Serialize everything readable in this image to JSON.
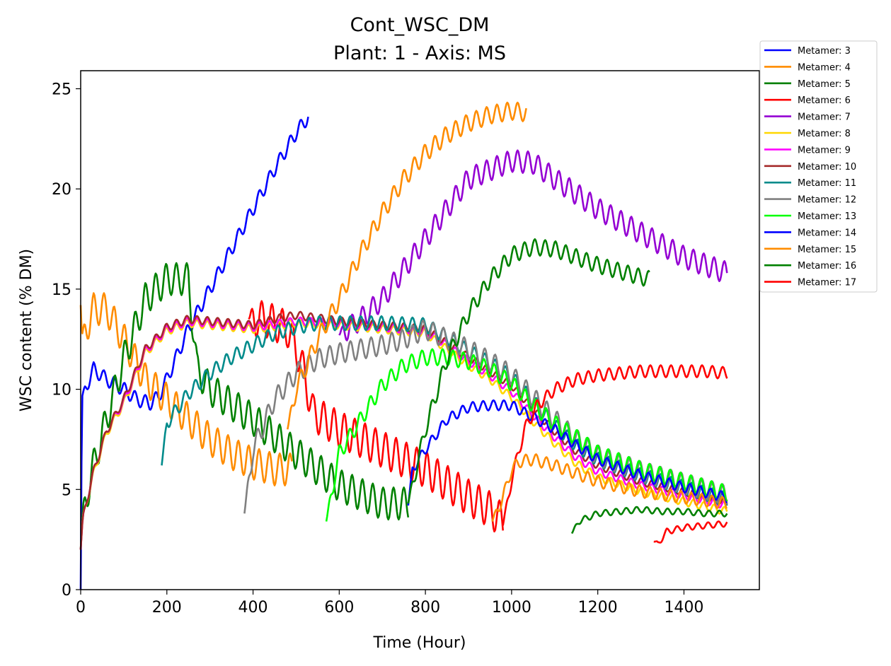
{
  "chart_data": {
    "type": "line",
    "title": "Cont_WSC_DM",
    "subtitle": "Plant: 1 - Axis: MS",
    "xlabel": "Time (Hour)",
    "ylabel": "WSC content (% DM)",
    "xlim": [
      0,
      1575
    ],
    "ylim": [
      0,
      25.9
    ],
    "xticks": [
      "0",
      "200",
      "400",
      "600",
      "800",
      "1000",
      "1200",
      "1400"
    ],
    "yticks": [
      "0",
      "5",
      "10",
      "15",
      "20",
      "25"
    ],
    "grid": false,
    "legend_position": "outside top-right",
    "series": [
      {
        "name": "Metamer: 3",
        "color": "#0000ff",
        "amp": 0.35,
        "x": [
          0,
          3,
          10,
          30,
          60,
          100,
          130,
          160,
          180,
          200,
          250,
          300,
          350,
          400,
          450,
          500,
          528
        ],
        "y": [
          0,
          9.5,
          10.0,
          11.0,
          10.5,
          10.0,
          9.5,
          9.3,
          9.6,
          10.5,
          13.0,
          15.0,
          17.0,
          19.0,
          21.0,
          22.8,
          23.6
        ]
      },
      {
        "name": "Metamer: 4",
        "color": "#ff8c00",
        "amp": 0.8,
        "x": [
          0,
          3,
          30,
          60,
          100,
          150,
          200,
          250,
          300,
          350,
          400,
          450,
          490
        ],
        "y": [
          14.2,
          12.5,
          14.0,
          14.0,
          12.5,
          10.5,
          9.5,
          8.5,
          7.5,
          6.8,
          6.3,
          6.0,
          6.0
        ]
      },
      {
        "name": "Metamer: 5",
        "color": "#008000",
        "amp": 0.8,
        "x": [
          0,
          5,
          30,
          60,
          100,
          150,
          200,
          250,
          270,
          300,
          400,
          500,
          600,
          700,
          760
        ],
        "y": [
          2.0,
          3.8,
          6.2,
          8.5,
          11.5,
          14.5,
          15.5,
          15.5,
          11.0,
          10.0,
          8.5,
          6.8,
          5.2,
          4.3,
          4.3
        ]
      },
      {
        "name": "Metamer: 6",
        "color": "#ff0000",
        "amp": 0.9,
        "x": [
          390,
          430,
          480,
          510,
          540,
          600,
          700,
          800,
          900,
          950,
          980
        ],
        "y": [
          13.5,
          13.5,
          13.0,
          11.5,
          8.8,
          8.0,
          7.0,
          6.0,
          4.6,
          4.0,
          3.4
        ]
      },
      {
        "name": "Metamer: 7",
        "color": "#9400d3",
        "amp": 0.55,
        "x": [
          600,
          650,
          700,
          750,
          800,
          850,
          900,
          1000,
          1050,
          1100,
          1200,
          1300,
          1400,
          1500
        ],
        "y": [
          12.7,
          13.5,
          14.5,
          16.0,
          17.5,
          19.0,
          20.5,
          21.4,
          21.3,
          20.5,
          19.0,
          17.8,
          16.6,
          15.8
        ]
      },
      {
        "name": "Metamer: 8",
        "color": "#ffd700",
        "amp": 0.2,
        "x": [
          0,
          5,
          30,
          60,
          100,
          150,
          200,
          250,
          300,
          400,
          500,
          600,
          700,
          800,
          850,
          900,
          950,
          1000,
          1050,
          1100,
          1150,
          1200,
          1300,
          1400,
          1500
        ],
        "y": [
          2.0,
          3.6,
          5.8,
          7.8,
          9.3,
          11.8,
          12.9,
          13.3,
          13.2,
          13.0,
          13.3,
          13.2,
          13.0,
          12.8,
          12.0,
          11.2,
          10.5,
          9.6,
          8.4,
          7.3,
          6.3,
          5.6,
          4.9,
          4.4,
          3.9
        ]
      },
      {
        "name": "Metamer: 9",
        "color": "#ff00ff",
        "amp": 0.2,
        "x": [
          0,
          5,
          30,
          60,
          100,
          150,
          200,
          250,
          300,
          400,
          500,
          600,
          700,
          800,
          850,
          900,
          950,
          1000,
          1050,
          1100,
          1150,
          1200,
          1300,
          1400,
          1500
        ],
        "y": [
          2.0,
          3.6,
          5.9,
          7.9,
          9.4,
          11.9,
          13.0,
          13.4,
          13.3,
          13.1,
          13.4,
          13.3,
          13.1,
          12.9,
          12.2,
          11.4,
          10.7,
          9.9,
          8.7,
          7.6,
          6.6,
          5.9,
          5.2,
          4.7,
          4.2
        ]
      },
      {
        "name": "Metamer: 10",
        "color": "#a52a2a",
        "amp": 0.2,
        "x": [
          0,
          5,
          30,
          60,
          100,
          150,
          200,
          250,
          300,
          400,
          450,
          500,
          600,
          700,
          800,
          850,
          900,
          950,
          1000,
          1050,
          1100,
          1150,
          1200,
          1300,
          1400,
          1500
        ],
        "y": [
          2.0,
          3.6,
          5.9,
          7.9,
          9.5,
          12.0,
          13.1,
          13.5,
          13.4,
          13.2,
          13.5,
          13.7,
          13.4,
          13.2,
          13.0,
          12.3,
          11.6,
          10.9,
          10.2,
          9.0,
          7.9,
          6.9,
          6.2,
          5.4,
          4.9,
          4.4
        ]
      },
      {
        "name": "Metamer: 11",
        "color": "#008b8b",
        "amp": 0.35,
        "x": [
          188,
          200,
          250,
          300,
          350,
          400,
          450,
          500,
          550,
          600,
          700,
          800,
          850,
          900,
          950,
          1000,
          1050,
          1100,
          1150,
          1200,
          1300,
          1400,
          1500
        ],
        "y": [
          6.2,
          8.3,
          9.8,
          10.8,
          11.6,
          12.2,
          12.8,
          13.1,
          13.3,
          13.3,
          13.3,
          13.2,
          12.6,
          11.9,
          11.3,
          10.6,
          9.4,
          8.2,
          7.2,
          6.5,
          5.7,
          5.1,
          4.5
        ]
      },
      {
        "name": "Metamer: 12",
        "color": "#808080",
        "amp": 0.5,
        "x": [
          380,
          400,
          450,
          500,
          550,
          600,
          650,
          700,
          750,
          800,
          850,
          900,
          950,
          1000,
          1050,
          1100,
          1150,
          1200,
          1300,
          1400,
          1500
        ],
        "y": [
          3.8,
          7.0,
          9.5,
          10.8,
          11.5,
          11.8,
          12.0,
          12.2,
          12.5,
          13.0,
          12.5,
          12.0,
          11.4,
          10.7,
          9.6,
          8.5,
          7.5,
          6.7,
          5.9,
          5.3,
          4.7
        ]
      },
      {
        "name": "Metamer: 13",
        "color": "#00ff00",
        "amp": 0.4,
        "x": [
          570,
          600,
          650,
          700,
          750,
          800,
          850,
          900,
          950,
          1000,
          1050,
          1100,
          1150,
          1200,
          1300,
          1400,
          1500
        ],
        "y": [
          3.4,
          6.8,
          8.5,
          10.2,
          11.2,
          11.6,
          11.6,
          11.4,
          11.0,
          10.3,
          9.2,
          8.3,
          7.6,
          6.8,
          6.0,
          5.4,
          4.8
        ]
      },
      {
        "name": "Metamer: 14",
        "color": "#0000ff",
        "amp": 0.25,
        "x": [
          760,
          770,
          800,
          850,
          900,
          950,
          1000,
          1050,
          1100,
          1150,
          1200,
          1300,
          1400,
          1500
        ],
        "y": [
          4.2,
          6.0,
          7.0,
          8.5,
          9.1,
          9.2,
          9.2,
          8.6,
          8.0,
          7.2,
          6.5,
          5.7,
          5.1,
          4.6
        ]
      },
      {
        "name": "Metamer: 15",
        "color": "#ff8c00",
        "amp": 0.45,
        "x": [
          480,
          500,
          550,
          600,
          650,
          700,
          750,
          800,
          850,
          900,
          950,
          1000,
          1035
        ],
        "y": [
          8.0,
          10.0,
          12.5,
          14.5,
          16.8,
          18.8,
          20.5,
          21.8,
          22.7,
          23.3,
          23.7,
          23.9,
          23.8
        ]
      },
      {
        "name": "Metamer: 16",
        "color": "#008000",
        "amp": 0.4,
        "x": [
          760,
          800,
          850,
          900,
          950,
          1000,
          1050,
          1100,
          1150,
          1200,
          1250,
          1300,
          1320
        ],
        "y": [
          4.3,
          8.0,
          11.5,
          13.8,
          15.5,
          16.7,
          17.1,
          17.0,
          16.6,
          16.2,
          15.9,
          15.6,
          15.5
        ]
      },
      {
        "name": "Metamer: 17",
        "color": "#ff0000",
        "amp": 0.3,
        "x": [
          980,
          1000,
          1030,
          1060,
          1100,
          1150,
          1200,
          1250,
          1300,
          1350,
          1400,
          1450,
          1500
        ],
        "y": [
          3.2,
          5.5,
          8.0,
          9.2,
          10.0,
          10.5,
          10.7,
          10.8,
          10.9,
          10.9,
          10.9,
          10.9,
          10.8
        ]
      },
      {
        "name": "",
        "color": "#ff8c00",
        "amp": 0.3,
        "x": [
          955,
          980,
          1000,
          1020,
          1050,
          1100,
          1150,
          1200,
          1300,
          1400,
          1500
        ],
        "y": [
          3.4,
          4.6,
          6.0,
          6.4,
          6.5,
          6.2,
          5.8,
          5.4,
          4.9,
          4.6,
          4.3
        ]
      },
      {
        "name": "",
        "color": "#008000",
        "amp": 0.15,
        "x": [
          1140,
          1155,
          1200,
          1250,
          1300,
          1350,
          1400,
          1450,
          1500
        ],
        "y": [
          2.8,
          3.4,
          3.8,
          3.9,
          4.0,
          3.9,
          3.9,
          3.8,
          3.8
        ]
      },
      {
        "name": "",
        "color": "#ff0000",
        "amp": 0.15,
        "x": [
          1330,
          1340,
          1360,
          1400,
          1450,
          1500
        ],
        "y": [
          2.4,
          2.3,
          2.9,
          3.1,
          3.2,
          3.3
        ]
      }
    ]
  }
}
